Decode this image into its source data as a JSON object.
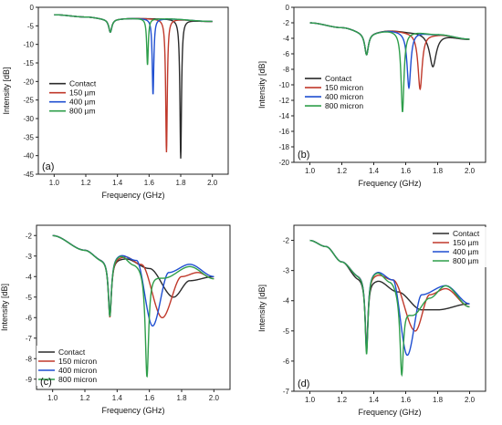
{
  "chart_data": [
    {
      "type": "line",
      "panel_label": "(a)",
      "xlabel": "Frequency (GHz)",
      "ylabel": "Intensity [dB]",
      "xlim": [
        0.9,
        2.1
      ],
      "ylim": [
        -45,
        0
      ],
      "xticks": [
        1.0,
        1.2,
        1.4,
        1.6,
        1.8,
        2.0
      ],
      "yticks": [
        0,
        -5,
        -10,
        -15,
        -20,
        -25,
        -30,
        -35,
        -40,
        -45
      ],
      "legend_position": "left-middle",
      "series": [
        {
          "name": "Contact",
          "color": "#2b2b2b",
          "baseline": [
            [
              1.0,
              -2.0
            ],
            [
              1.2,
              -2.6
            ],
            [
              1.35,
              -3.2
            ],
            [
              1.5,
              -3.0
            ],
            [
              1.7,
              -3.1
            ],
            [
              2.0,
              -3.8
            ]
          ],
          "dips": [
            {
              "x": 1.355,
              "depth": -3.5,
              "w": 0.012
            },
            {
              "x": 1.8,
              "depth": -37.5,
              "w": 0.006
            }
          ]
        },
        {
          "name": "150 µm",
          "color": "#c0392b",
          "baseline": [
            [
              1.0,
              -2.0
            ],
            [
              1.2,
              -2.6
            ],
            [
              1.35,
              -3.2
            ],
            [
              1.5,
              -3.0
            ],
            [
              1.7,
              -3.1
            ],
            [
              2.0,
              -3.8
            ]
          ],
          "dips": [
            {
              "x": 1.355,
              "depth": -3.5,
              "w": 0.012
            },
            {
              "x": 1.71,
              "depth": -36.0,
              "w": 0.006
            }
          ]
        },
        {
          "name": "400 µm",
          "color": "#1f4fd1",
          "baseline": [
            [
              1.0,
              -2.0
            ],
            [
              1.2,
              -2.6
            ],
            [
              1.35,
              -3.2
            ],
            [
              1.5,
              -3.0
            ],
            [
              1.7,
              -3.1
            ],
            [
              2.0,
              -3.8
            ]
          ],
          "dips": [
            {
              "x": 1.355,
              "depth": -3.5,
              "w": 0.012
            },
            {
              "x": 1.625,
              "depth": -20.5,
              "w": 0.006
            }
          ]
        },
        {
          "name": "800 µm",
          "color": "#2e9e4a",
          "baseline": [
            [
              1.0,
              -2.0
            ],
            [
              1.2,
              -2.6
            ],
            [
              1.35,
              -3.2
            ],
            [
              1.5,
              -3.0
            ],
            [
              1.7,
              -3.1
            ],
            [
              2.0,
              -3.8
            ]
          ],
          "dips": [
            {
              "x": 1.355,
              "depth": -3.5,
              "w": 0.012
            },
            {
              "x": 1.59,
              "depth": -12.5,
              "w": 0.006
            }
          ]
        }
      ]
    },
    {
      "type": "line",
      "panel_label": "(b)",
      "xlabel": "Frequency (GHz)",
      "ylabel": "Intensity [dB]",
      "xlim": [
        0.9,
        2.1
      ],
      "ylim": [
        -20,
        0
      ],
      "xticks": [
        1.0,
        1.2,
        1.4,
        1.6,
        1.8,
        2.0
      ],
      "yticks": [
        0,
        -2,
        -4,
        -6,
        -8,
        -10,
        -12,
        -14,
        -16,
        -18,
        -20
      ],
      "legend_position": "left-middle",
      "series": [
        {
          "name": "Contact",
          "color": "#2b2b2b",
          "baseline": [
            [
              1.0,
              -2.0
            ],
            [
              1.2,
              -2.6
            ],
            [
              1.36,
              -3.3
            ],
            [
              1.5,
              -3.0
            ],
            [
              1.65,
              -3.2
            ],
            [
              1.8,
              -3.5
            ],
            [
              2.0,
              -4.1
            ]
          ],
          "dips": [
            {
              "x": 1.355,
              "depth": -2.8,
              "w": 0.014
            },
            {
              "x": 1.77,
              "depth": -4.2,
              "w": 0.025
            }
          ]
        },
        {
          "name": "150 micron",
          "color": "#c0392b",
          "baseline": [
            [
              1.0,
              -2.0
            ],
            [
              1.2,
              -2.6
            ],
            [
              1.36,
              -3.3
            ],
            [
              1.5,
              -3.0
            ],
            [
              1.65,
              -3.2
            ],
            [
              1.8,
              -3.5
            ],
            [
              2.0,
              -4.1
            ]
          ],
          "dips": [
            {
              "x": 1.355,
              "depth": -2.8,
              "w": 0.014
            },
            {
              "x": 1.69,
              "depth": -7.3,
              "w": 0.016
            }
          ]
        },
        {
          "name": "400 micron",
          "color": "#1f4fd1",
          "baseline": [
            [
              1.0,
              -2.0
            ],
            [
              1.2,
              -2.6
            ],
            [
              1.36,
              -3.3
            ],
            [
              1.5,
              -3.0
            ],
            [
              1.65,
              -3.2
            ],
            [
              1.8,
              -3.5
            ],
            [
              2.0,
              -4.1
            ]
          ],
          "dips": [
            {
              "x": 1.355,
              "depth": -2.8,
              "w": 0.014
            },
            {
              "x": 1.62,
              "depth": -7.2,
              "w": 0.014
            }
          ]
        },
        {
          "name": "800 micron",
          "color": "#2e9e4a",
          "baseline": [
            [
              1.0,
              -2.0
            ],
            [
              1.2,
              -2.6
            ],
            [
              1.36,
              -3.3
            ],
            [
              1.5,
              -3.0
            ],
            [
              1.65,
              -3.2
            ],
            [
              1.8,
              -3.5
            ],
            [
              2.0,
              -4.1
            ]
          ],
          "dips": [
            {
              "x": 1.355,
              "depth": -2.8,
              "w": 0.014
            },
            {
              "x": 1.58,
              "depth": -10.4,
              "w": 0.011
            }
          ]
        }
      ]
    },
    {
      "type": "line",
      "panel_label": "(c)",
      "xlabel": "Frequency (GHz)",
      "ylabel": "Intensity [dB]",
      "xlim": [
        0.9,
        2.1
      ],
      "ylim": [
        -9.5,
        -1.5
      ],
      "xticks": [
        1.0,
        1.2,
        1.4,
        1.6,
        1.8,
        2.0
      ],
      "yticks": [
        -2,
        -3,
        -4,
        -5,
        -6,
        -7,
        -8,
        -9
      ],
      "legend_position": "bottom-left",
      "series": [
        {
          "name": "Contact",
          "color": "#2b2b2b",
          "baseline": [
            [
              1.0,
              -2.0
            ],
            [
              1.2,
              -2.7
            ],
            [
              1.3,
              -3.1
            ],
            [
              1.45,
              -3.1
            ],
            [
              1.6,
              -3.6
            ],
            [
              1.75,
              -5.0
            ],
            [
              1.85,
              -4.2
            ],
            [
              2.0,
              -4.0
            ]
          ],
          "dips": [
            {
              "x": 1.355,
              "depth": -2.7,
              "w": 0.012
            }
          ]
        },
        {
          "name": "150 micron",
          "color": "#c0392b",
          "baseline": [
            [
              1.0,
              -2.0
            ],
            [
              1.2,
              -2.7
            ],
            [
              1.3,
              -3.1
            ],
            [
              1.45,
              -3.0
            ],
            [
              1.55,
              -3.4
            ],
            [
              1.68,
              -6.0
            ],
            [
              1.8,
              -4.0
            ],
            [
              1.9,
              -3.8
            ],
            [
              2.0,
              -4.1
            ]
          ],
          "dips": [
            {
              "x": 1.355,
              "depth": -2.9,
              "w": 0.012
            }
          ]
        },
        {
          "name": "400 micron",
          "color": "#1f4fd1",
          "baseline": [
            [
              1.0,
              -2.0
            ],
            [
              1.2,
              -2.7
            ],
            [
              1.3,
              -3.1
            ],
            [
              1.42,
              -2.9
            ],
            [
              1.52,
              -3.2
            ],
            [
              1.62,
              -6.4
            ],
            [
              1.72,
              -3.8
            ],
            [
              1.85,
              -3.4
            ],
            [
              2.0,
              -4.0
            ]
          ],
          "dips": [
            {
              "x": 1.355,
              "depth": -2.9,
              "w": 0.012
            }
          ]
        },
        {
          "name": "800 micron",
          "color": "#2e9e4a",
          "baseline": [
            [
              1.0,
              -2.0
            ],
            [
              1.2,
              -2.7
            ],
            [
              1.3,
              -3.1
            ],
            [
              1.42,
              -2.9
            ],
            [
              1.5,
              -3.3
            ],
            [
              1.7,
              -4.0
            ],
            [
              1.85,
              -3.5
            ],
            [
              2.0,
              -4.1
            ]
          ],
          "dips": [
            {
              "x": 1.355,
              "depth": -2.9,
              "w": 0.012
            },
            {
              "x": 1.585,
              "depth": -5.3,
              "w": 0.013
            }
          ]
        }
      ]
    },
    {
      "type": "line",
      "panel_label": "(d)",
      "xlabel": "Frequency (GHz)",
      "ylabel": "Intensity [dB]",
      "xlim": [
        0.9,
        2.1
      ],
      "ylim": [
        -7,
        -1.5
      ],
      "xticks": [
        1.0,
        1.2,
        1.4,
        1.6,
        1.8,
        2.0
      ],
      "yticks": [
        -2,
        -3,
        -4,
        -5,
        -6,
        -7
      ],
      "legend_position": "top-right",
      "series": [
        {
          "name": "Contact",
          "color": "#2b2b2b",
          "baseline": [
            [
              1.0,
              -2.0
            ],
            [
              1.1,
              -2.2
            ],
            [
              1.2,
              -2.7
            ],
            [
              1.3,
              -3.2
            ],
            [
              1.42,
              -3.3
            ],
            [
              1.55,
              -3.7
            ],
            [
              1.7,
              -4.3
            ],
            [
              1.8,
              -4.3
            ],
            [
              2.0,
              -4.1
            ]
          ],
          "dips": [
            {
              "x": 1.355,
              "depth": -2.3,
              "w": 0.011
            }
          ]
        },
        {
          "name": "150 µm",
          "color": "#c0392b",
          "baseline": [
            [
              1.0,
              -2.0
            ],
            [
              1.1,
              -2.2
            ],
            [
              1.2,
              -2.7
            ],
            [
              1.3,
              -3.1
            ],
            [
              1.42,
              -3.1
            ],
            [
              1.52,
              -3.3
            ],
            [
              1.66,
              -5.0
            ],
            [
              1.75,
              -3.8
            ],
            [
              1.85,
              -3.6
            ],
            [
              2.0,
              -4.2
            ]
          ],
          "dips": [
            {
              "x": 1.355,
              "depth": -2.5,
              "w": 0.011
            }
          ]
        },
        {
          "name": "400 µm",
          "color": "#1f4fd1",
          "baseline": [
            [
              1.0,
              -2.0
            ],
            [
              1.1,
              -2.2
            ],
            [
              1.2,
              -2.7
            ],
            [
              1.3,
              -3.1
            ],
            [
              1.42,
              -3.0
            ],
            [
              1.52,
              -3.3
            ],
            [
              1.61,
              -5.8
            ],
            [
              1.7,
              -3.8
            ],
            [
              1.85,
              -3.5
            ],
            [
              2.0,
              -4.1
            ]
          ],
          "dips": [
            {
              "x": 1.355,
              "depth": -2.6,
              "w": 0.011
            }
          ]
        },
        {
          "name": "800 µm",
          "color": "#2e9e4a",
          "baseline": [
            [
              1.0,
              -2.0
            ],
            [
              1.1,
              -2.2
            ],
            [
              1.2,
              -2.7
            ],
            [
              1.3,
              -3.1
            ],
            [
              1.42,
              -3.0
            ],
            [
              1.5,
              -3.3
            ],
            [
              1.65,
              -4.4
            ],
            [
              1.75,
              -3.9
            ],
            [
              1.85,
              -3.5
            ],
            [
              2.0,
              -4.2
            ]
          ],
          "dips": [
            {
              "x": 1.355,
              "depth": -2.7,
              "w": 0.011
            },
            {
              "x": 1.575,
              "depth": -2.6,
              "w": 0.013
            }
          ]
        }
      ]
    }
  ]
}
